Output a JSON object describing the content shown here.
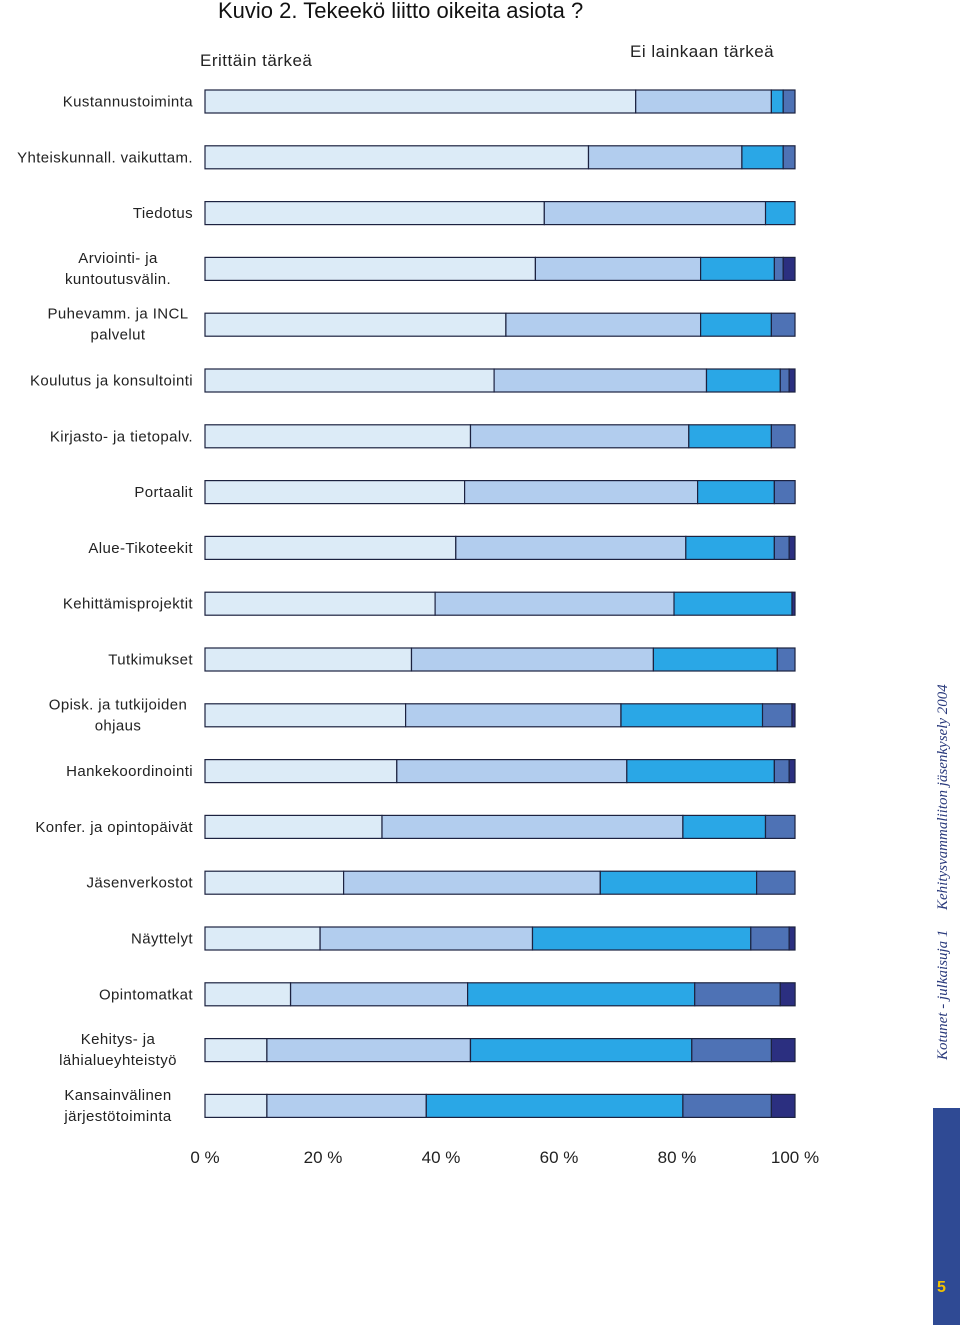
{
  "chart_data": {
    "type": "bar",
    "stacked": "percent",
    "orientation": "horizontal",
    "title": "Kuvio 2. Tekeekö liitto oikeita asiota ?",
    "legend": {
      "left_label": "Erittäin tärkeä",
      "right_label": "Ei lainkaan tärkeä"
    },
    "xlim": [
      0,
      100
    ],
    "xticks": [
      "0 %",
      "20 %",
      "40 %",
      "60 %",
      "80 %",
      "100 %"
    ],
    "categories": [
      [
        "Kustannustoiminta"
      ],
      [
        "Yhteiskunnall. vaikuttam."
      ],
      [
        "Tiedotus"
      ],
      [
        "Arviointi- ja",
        "kuntoutusvälin."
      ],
      [
        "Puhevamm. ja INCL",
        "palvelut"
      ],
      [
        "Koulutus ja konsultointi"
      ],
      [
        "Kirjasto- ja tietopalv."
      ],
      [
        "Portaalit"
      ],
      [
        "Alue-Tikoteekit"
      ],
      [
        "Kehittämisprojektit"
      ],
      [
        "Tutkimukset"
      ],
      [
        "Opisk. ja tutkijoiden",
        "ohjaus"
      ],
      [
        "Hankekoordinointi"
      ],
      [
        "Konfer. ja opintopäivät"
      ],
      [
        "Jäsenverkostot"
      ],
      [
        "Näyttelyt"
      ],
      [
        "Opintomatkat"
      ],
      [
        "Kehitys- ja",
        "lähialueyhteistyö"
      ],
      [
        "Kansainvälinen",
        "järjestötoiminta"
      ]
    ],
    "series_colors": [
      "#dcebf7",
      "#b2cdee",
      "#2aa7e6",
      "#4e72b5",
      "#2b2f80"
    ],
    "rows": [
      [
        73,
        23,
        2,
        2,
        0
      ],
      [
        65,
        26,
        7,
        2,
        0
      ],
      [
        57.5,
        37.5,
        5,
        0,
        0
      ],
      [
        56,
        28,
        12.5,
        1.5,
        2
      ],
      [
        51,
        33,
        12,
        4,
        0
      ],
      [
        49,
        36,
        12.5,
        1.5,
        1
      ],
      [
        45,
        37,
        14,
        4,
        0
      ],
      [
        44,
        39.5,
        13,
        3.5,
        0
      ],
      [
        42.5,
        39,
        15,
        2.5,
        1
      ],
      [
        39,
        40.5,
        20,
        0,
        0.5
      ],
      [
        35,
        41,
        21,
        3,
        0
      ],
      [
        34,
        36.5,
        24,
        5,
        0.5
      ],
      [
        32.5,
        39,
        25,
        2.5,
        1
      ],
      [
        30,
        51,
        14,
        5,
        0
      ],
      [
        23.5,
        43.5,
        26.5,
        6.5,
        0
      ],
      [
        19.5,
        36,
        37,
        6.5,
        1
      ],
      [
        14.5,
        30,
        38.5,
        14.5,
        2.5
      ],
      [
        10.5,
        34.5,
        37.5,
        13.5,
        4
      ],
      [
        10.5,
        27,
        43.5,
        15,
        4
      ]
    ]
  },
  "side_text": {
    "vertical_line1": "Kotunet - julkaisuja 1",
    "vertical_line2": "Kehitysvammaliiton jäsenkysely 2004"
  },
  "page_number": "5",
  "accent_color": "#2f4a94"
}
